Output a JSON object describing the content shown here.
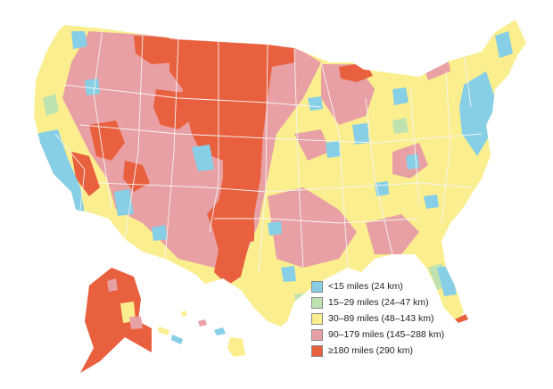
{
  "map": {
    "region": "United States",
    "colors": {
      "background": "#ffffff",
      "state_borders": "#f5f5f5"
    }
  },
  "legend": {
    "items": [
      {
        "label": "<15 miles (24 km)",
        "color": "#86cfe6"
      },
      {
        "label": "15–29 miles (24–47 km)",
        "color": "#bfe3b0"
      },
      {
        "label": "30–89 miles (48–143 km)",
        "color": "#fbee8e"
      },
      {
        "label": "90–179 miles (145–288 km)",
        "color": "#e8a0a4"
      },
      {
        "label": "≥180 miles (290 km)",
        "color": "#e9603f"
      }
    ]
  }
}
